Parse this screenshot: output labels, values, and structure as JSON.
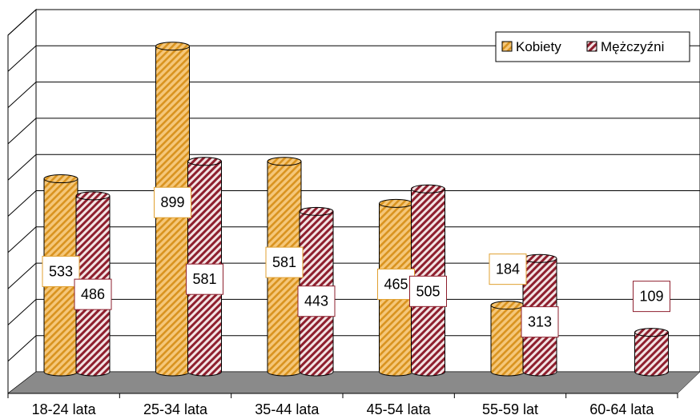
{
  "chart_data": {
    "type": "bar",
    "categories": [
      "18-24 lata",
      "25-34 lata",
      "35-44 lata",
      "45-54 lata",
      "55-59 lat",
      "60-64 lata"
    ],
    "series": [
      {
        "name": "Kobiety",
        "values": [
          533,
          899,
          581,
          465,
          184,
          null
        ]
      },
      {
        "name": "Mężczyźni",
        "values": [
          486,
          581,
          443,
          505,
          313,
          109
        ]
      }
    ],
    "ylim": [
      0,
      1000
    ],
    "grid": true,
    "legend": "top-right",
    "colors": {
      "kobiety_base": "#F5C77A",
      "kobiety_stripe": "#D9931F",
      "mezczyzni_base": "#F2E3E3",
      "mezczyzni_stripe": "#8E1F2E",
      "floor": "#8a8a8a",
      "label_border_kobiety": "#E0A030",
      "label_border_mezczyzni": "#8E1F2E"
    }
  }
}
